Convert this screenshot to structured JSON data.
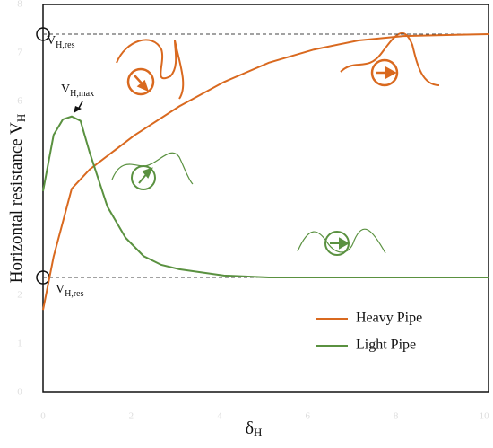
{
  "chart_data": {
    "type": "line",
    "xlabel": "δ",
    "xlabel_sub": "H",
    "ylabel": "Horizontal resistance V",
    "ylabel_sub": "H",
    "xlim": [
      0,
      10.1
    ],
    "ylim": [
      0,
      8
    ],
    "xticks": [
      0,
      2,
      4,
      6,
      8,
      10
    ],
    "yticks": [
      0,
      1,
      2,
      3,
      4,
      5,
      6,
      7,
      8
    ],
    "reference_lines": [
      7.39,
      2.37
    ],
    "annotations": [
      {
        "text": "V",
        "sub": "H,res"
      },
      {
        "text": "V",
        "sub": "H,max"
      },
      {
        "text": "V",
        "sub": "H,res"
      }
    ],
    "legend": "lower right",
    "series": [
      {
        "name": "Heavy Pipe",
        "color": "#d9691f",
        "x": [
          0,
          0.24,
          0.65,
          1.06,
          2.07,
          3.09,
          4.1,
          5.12,
          6.14,
          7.15,
          8.17,
          10.1
        ],
        "values": [
          1.7,
          2.8,
          4.2,
          4.6,
          5.3,
          5.9,
          6.4,
          6.8,
          7.07,
          7.26,
          7.35,
          7.39
        ]
      },
      {
        "name": "Light Pipe",
        "color": "#5a9140",
        "x": [
          0,
          0.24,
          0.45,
          0.65,
          0.85,
          1.06,
          1.46,
          1.87,
          2.28,
          2.68,
          3.09,
          4.1,
          5.12,
          10.1
        ],
        "values": [
          4.15,
          5.31,
          5.63,
          5.69,
          5.6,
          4.94,
          3.83,
          3.19,
          2.81,
          2.63,
          2.54,
          2.41,
          2.37,
          2.37
        ]
      }
    ]
  }
}
